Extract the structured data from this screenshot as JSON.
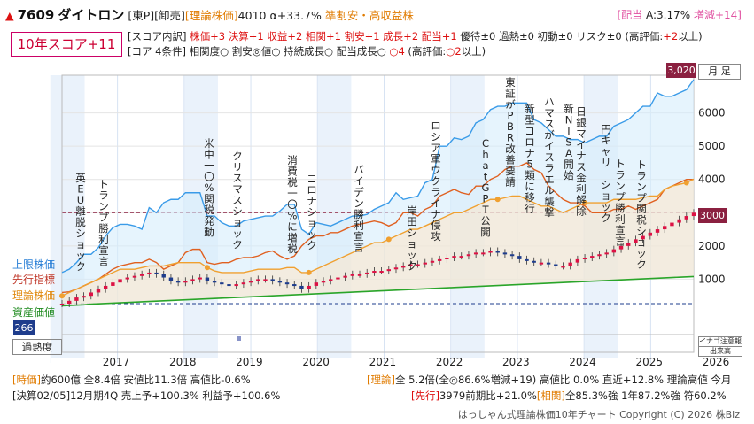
{
  "header": {
    "icon": "up-arrow-icon",
    "code": "7609",
    "name": "ダイトロン",
    "market": "[東P]",
    "sector": "[卸売]",
    "theory_label": "[理論株価]",
    "theory_value": "4010",
    "alpha": "α+33.7%",
    "tags": "準割安・高収益株",
    "div_label": "[配当",
    "div_text": "A:3.17%",
    "div_change": "増減+14]"
  },
  "score": {
    "label": "10年スコア+11",
    "breakdown_prefix": "[スコア内訳]",
    "breakdown_red": "株価+3 決算+1 収益+2 相関+1 割安+1 成長+2 配当+1",
    "breakdown_rest": " 優待±0 過熱±0 初動±0 リスク±0 (高評価:",
    "breakdown_high": "+2",
    "breakdown_tail": "以上)",
    "core_prefix": "[コア 4条件]",
    "core_items": "相関度○ 割安◎値○ 持続成長○ 配当成長○",
    "core_count": "○4",
    "core_tail_a": " (高評価:",
    "core_tail_high": "○2",
    "core_tail_b": "以上)"
  },
  "chart_labels": {
    "period": "月 足",
    "upper_limit": "上限株価",
    "leading": "先行指標",
    "theory": "理論株価",
    "asset": "資産価値",
    "heat": "過熱度",
    "current_high": "3,020",
    "current_price": "3000",
    "low_price": "266",
    "legend_small_1": "イナゴ注意報",
    "legend_small_2": "出来高"
  },
  "chart_data": {
    "type": "line",
    "x_labels": [
      "2017",
      "2018",
      "2019",
      "2020",
      "2021",
      "2022",
      "2023",
      "2024",
      "2025",
      "2026"
    ],
    "yticks": [
      1000,
      2000,
      3000,
      4000,
      5000,
      6000
    ],
    "ylim": [
      0,
      7000
    ],
    "series": [
      {
        "name": "上限株価",
        "color": "#3a9be8",
        "values": [
          1200,
          1300,
          1500,
          1750,
          1750,
          1950,
          2300,
          2550,
          2650,
          2650,
          2600,
          2500,
          3150,
          3000,
          3300,
          3400,
          3400,
          3600,
          3600,
          3600,
          2900,
          2900,
          2700,
          2600,
          2600,
          2750,
          2800,
          2850,
          2900,
          2900,
          3050,
          3250,
          3250,
          2500,
          2350,
          2700,
          2650,
          2600,
          2700,
          2800,
          2900,
          2900,
          2950,
          3100,
          3200,
          3300,
          3600,
          3400,
          3450,
          3500,
          3900,
          4000,
          5000,
          5000,
          5250,
          5200,
          5300,
          5700,
          5800,
          6100,
          6200,
          6200,
          6300,
          6300,
          6300,
          5800,
          5700,
          5500,
          5300,
          5300,
          5200,
          5200,
          5100,
          5200,
          5300,
          5300,
          5600,
          5700,
          5800,
          6000,
          6200,
          6200,
          6600,
          6500,
          6500,
          6600,
          6700,
          7000
        ]
      },
      {
        "name": "先行指標",
        "color": "#e06020",
        "values": [
          600,
          620,
          700,
          800,
          900,
          1000,
          1150,
          1300,
          1400,
          1450,
          1500,
          1500,
          1600,
          1500,
          1300,
          1400,
          1500,
          1800,
          1900,
          1900,
          1500,
          1450,
          1500,
          1500,
          1600,
          1650,
          1650,
          1700,
          1800,
          1850,
          1700,
          1600,
          1700,
          2000,
          2200,
          2300,
          2300,
          2400,
          2400,
          2500,
          2600,
          2650,
          2700,
          2750,
          2700,
          2600,
          2700,
          3000,
          3000,
          2900,
          3100,
          3200,
          3500,
          3600,
          3700,
          3600,
          3550,
          3800,
          3800,
          4000,
          4100,
          4300,
          4400,
          4400,
          4500,
          4300,
          4200,
          3800,
          3600,
          3400,
          3300,
          3300,
          3200,
          3000,
          3000,
          3000,
          3100,
          3100,
          3200,
          3100,
          3200,
          3300,
          3400,
          3700,
          3800,
          3900,
          4000,
          4000
        ]
      },
      {
        "name": "理論株価",
        "color": "#f0a030",
        "values": [
          500,
          600,
          700,
          800,
          900,
          1000,
          1100,
          1200,
          1300,
          1300,
          1300,
          1350,
          1400,
          1400,
          1400,
          1450,
          1500,
          1500,
          1500,
          1500,
          1350,
          1250,
          1200,
          1200,
          1200,
          1200,
          1250,
          1300,
          1300,
          1300,
          1300,
          1350,
          1350,
          1200,
          1200,
          1300,
          1400,
          1500,
          1600,
          1700,
          1800,
          1900,
          2000,
          2100,
          2100,
          2200,
          2300,
          2400,
          2500,
          2500,
          2600,
          2700,
          2800,
          2900,
          3000,
          3000,
          3100,
          3200,
          3300,
          3400,
          3400,
          3450,
          3500,
          3500,
          3400,
          3300,
          3200,
          3200,
          3100,
          3000,
          3100,
          3200,
          3300,
          3300,
          3300,
          3300,
          3400,
          3400,
          3400,
          3400,
          3450,
          3500,
          3500,
          3700,
          3800,
          3850,
          3900,
          4010
        ]
      },
      {
        "name": "資産価値",
        "color": "#2aa52a",
        "values": [
          200,
          210,
          220,
          230,
          250,
          260,
          270,
          280,
          290,
          300,
          310,
          320,
          330,
          340,
          350,
          360,
          370,
          380,
          390,
          400,
          410,
          420,
          430,
          440,
          450,
          460,
          470,
          480,
          490,
          500,
          510,
          520,
          530,
          540,
          550,
          560,
          570,
          580,
          590,
          600,
          610,
          620,
          630,
          640,
          650,
          660,
          670,
          680,
          690,
          700,
          710,
          720,
          730,
          740,
          750,
          760,
          770,
          780,
          790,
          800,
          810,
          820,
          830,
          840,
          850,
          860,
          870,
          880,
          890,
          900,
          910,
          920,
          930,
          940,
          950,
          960,
          970,
          980,
          990,
          1000,
          1010,
          1020,
          1030,
          1040,
          1050,
          1060,
          1070,
          1080
        ]
      },
      {
        "name": "株価",
        "color": "#1e3c8c",
        "values": [
          266,
          350,
          450,
          500,
          600,
          700,
          800,
          900,
          1000,
          1050,
          1100,
          1150,
          1200,
          1150,
          1050,
          950,
          900,
          950,
          1000,
          1050,
          950,
          900,
          850,
          800,
          850,
          900,
          950,
          1000,
          1000,
          950,
          900,
          850,
          800,
          700,
          800,
          900,
          950,
          1000,
          1050,
          1100,
          1150,
          1150,
          1200,
          1250,
          1250,
          1300,
          1350,
          1400,
          1450,
          1450,
          1500,
          1550,
          1600,
          1650,
          1700,
          1700,
          1750,
          1800,
          1800,
          1850,
          1800,
          1750,
          1700,
          1600,
          1550,
          1500,
          1500,
          1450,
          1400,
          1400,
          1500,
          1600,
          1650,
          1700,
          1750,
          1800,
          1900,
          2000,
          2100,
          2200,
          2300,
          2400,
          2500,
          2600,
          2700,
          2800,
          2900,
          3000
        ]
      }
    ]
  },
  "annotations": [
    {
      "text": "英EU離脱ショック"
    },
    {
      "text": "トランプ勝利宣言"
    },
    {
      "text": "米中一〇%関税発動"
    },
    {
      "text": "クリスマスショック"
    },
    {
      "text": "消費税一〇%に増税"
    },
    {
      "text": "コロナショック"
    },
    {
      "text": "バイデン勝利宣言"
    },
    {
      "text": "岸田ショック"
    },
    {
      "text": "ロシア軍ウクライナ侵攻"
    },
    {
      "text": "ChatGPT公開"
    },
    {
      "text": "東証がPBR改善要請"
    },
    {
      "text": "新型コロナ5類に移行"
    },
    {
      "text": "ハマスがイスラエル襲撃"
    },
    {
      "text": "新NISA開始"
    },
    {
      "text": "日銀マイナス金利解除"
    },
    {
      "text": "円キャリーショック"
    },
    {
      "text": "トランプ勝利宣言"
    },
    {
      "text": "トランプ関税ショック"
    }
  ],
  "footer": {
    "row1_left_a": "[時価]",
    "row1_left_b": "約600億",
    "row1_mid": "全8.4倍 安値比11.3倍 高値比-0.6%",
    "row1_right_a": "[理論]",
    "row1_right_b": "全 5.2倍(全◎86.6%増減+19) 高値比 0.0% 直近+12.8% 理論高値 今月",
    "row2_left": "[決算02/05]12月期4Q 売上予+100.3% 利益予+100.6%",
    "row2_right_a": "[先行]",
    "row2_right_b": "3979前期比+21.0%",
    "row2_right_c": "[相関]",
    "row2_right_d": "全85.3%強 1年87.2%強 符60.2%",
    "copyright": "はっしゃん式理論株価10年チャート Copyright (C) 2026 株Biz"
  }
}
